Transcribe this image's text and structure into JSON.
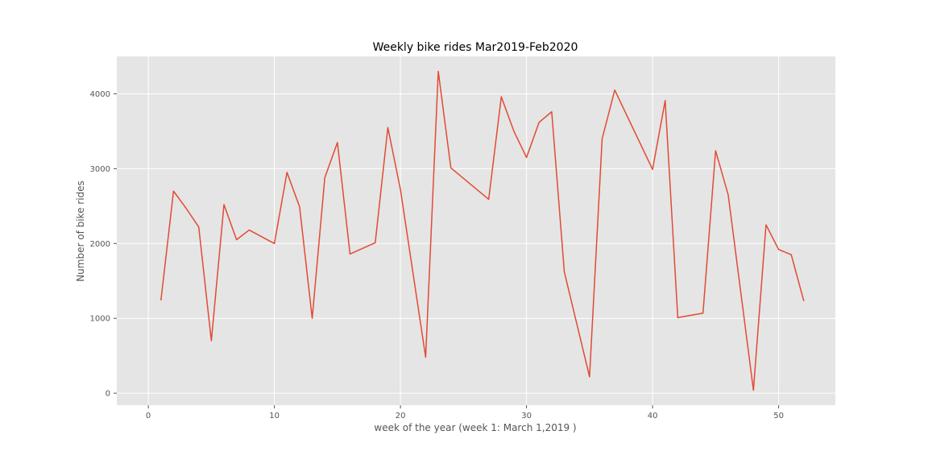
{
  "chart_data": {
    "type": "line",
    "title": "Weekly bike rides  Mar2019-Feb2020",
    "xlabel": "week of the year (week 1: March 1,2019 )",
    "ylabel": "Number of bike rides",
    "xlim": [
      -2.5,
      54.5
    ],
    "ylim": [
      -160,
      4500
    ],
    "xticks": [
      0,
      10,
      20,
      30,
      40,
      50
    ],
    "yticks": [
      0,
      1000,
      2000,
      3000,
      4000
    ],
    "grid": true,
    "colors": {
      "plot_bg": "#e5e5e5",
      "grid": "#ffffff",
      "line": "#e24a33"
    },
    "series": [
      {
        "x": [
          1,
          2,
          3,
          4,
          5,
          6,
          7,
          8,
          10,
          11,
          12,
          13,
          14,
          15,
          16,
          18,
          19,
          20,
          22,
          23,
          24,
          27,
          28,
          29,
          30,
          31,
          32,
          33,
          35,
          36,
          37,
          40,
          41,
          42,
          44,
          45,
          46,
          48,
          49,
          50,
          51,
          52
        ],
        "y": [
          1240,
          2700,
          2470,
          2220,
          700,
          2520,
          2050,
          2180,
          2000,
          2950,
          2490,
          1000,
          2880,
          3350,
          1860,
          2010,
          3550,
          2720,
          480,
          4300,
          3010,
          2590,
          3960,
          3500,
          3150,
          3620,
          3760,
          1620,
          220,
          3400,
          4050,
          2990,
          3910,
          1010,
          1070,
          3240,
          2650,
          40,
          2250,
          1920,
          1850,
          1230
        ]
      }
    ]
  }
}
